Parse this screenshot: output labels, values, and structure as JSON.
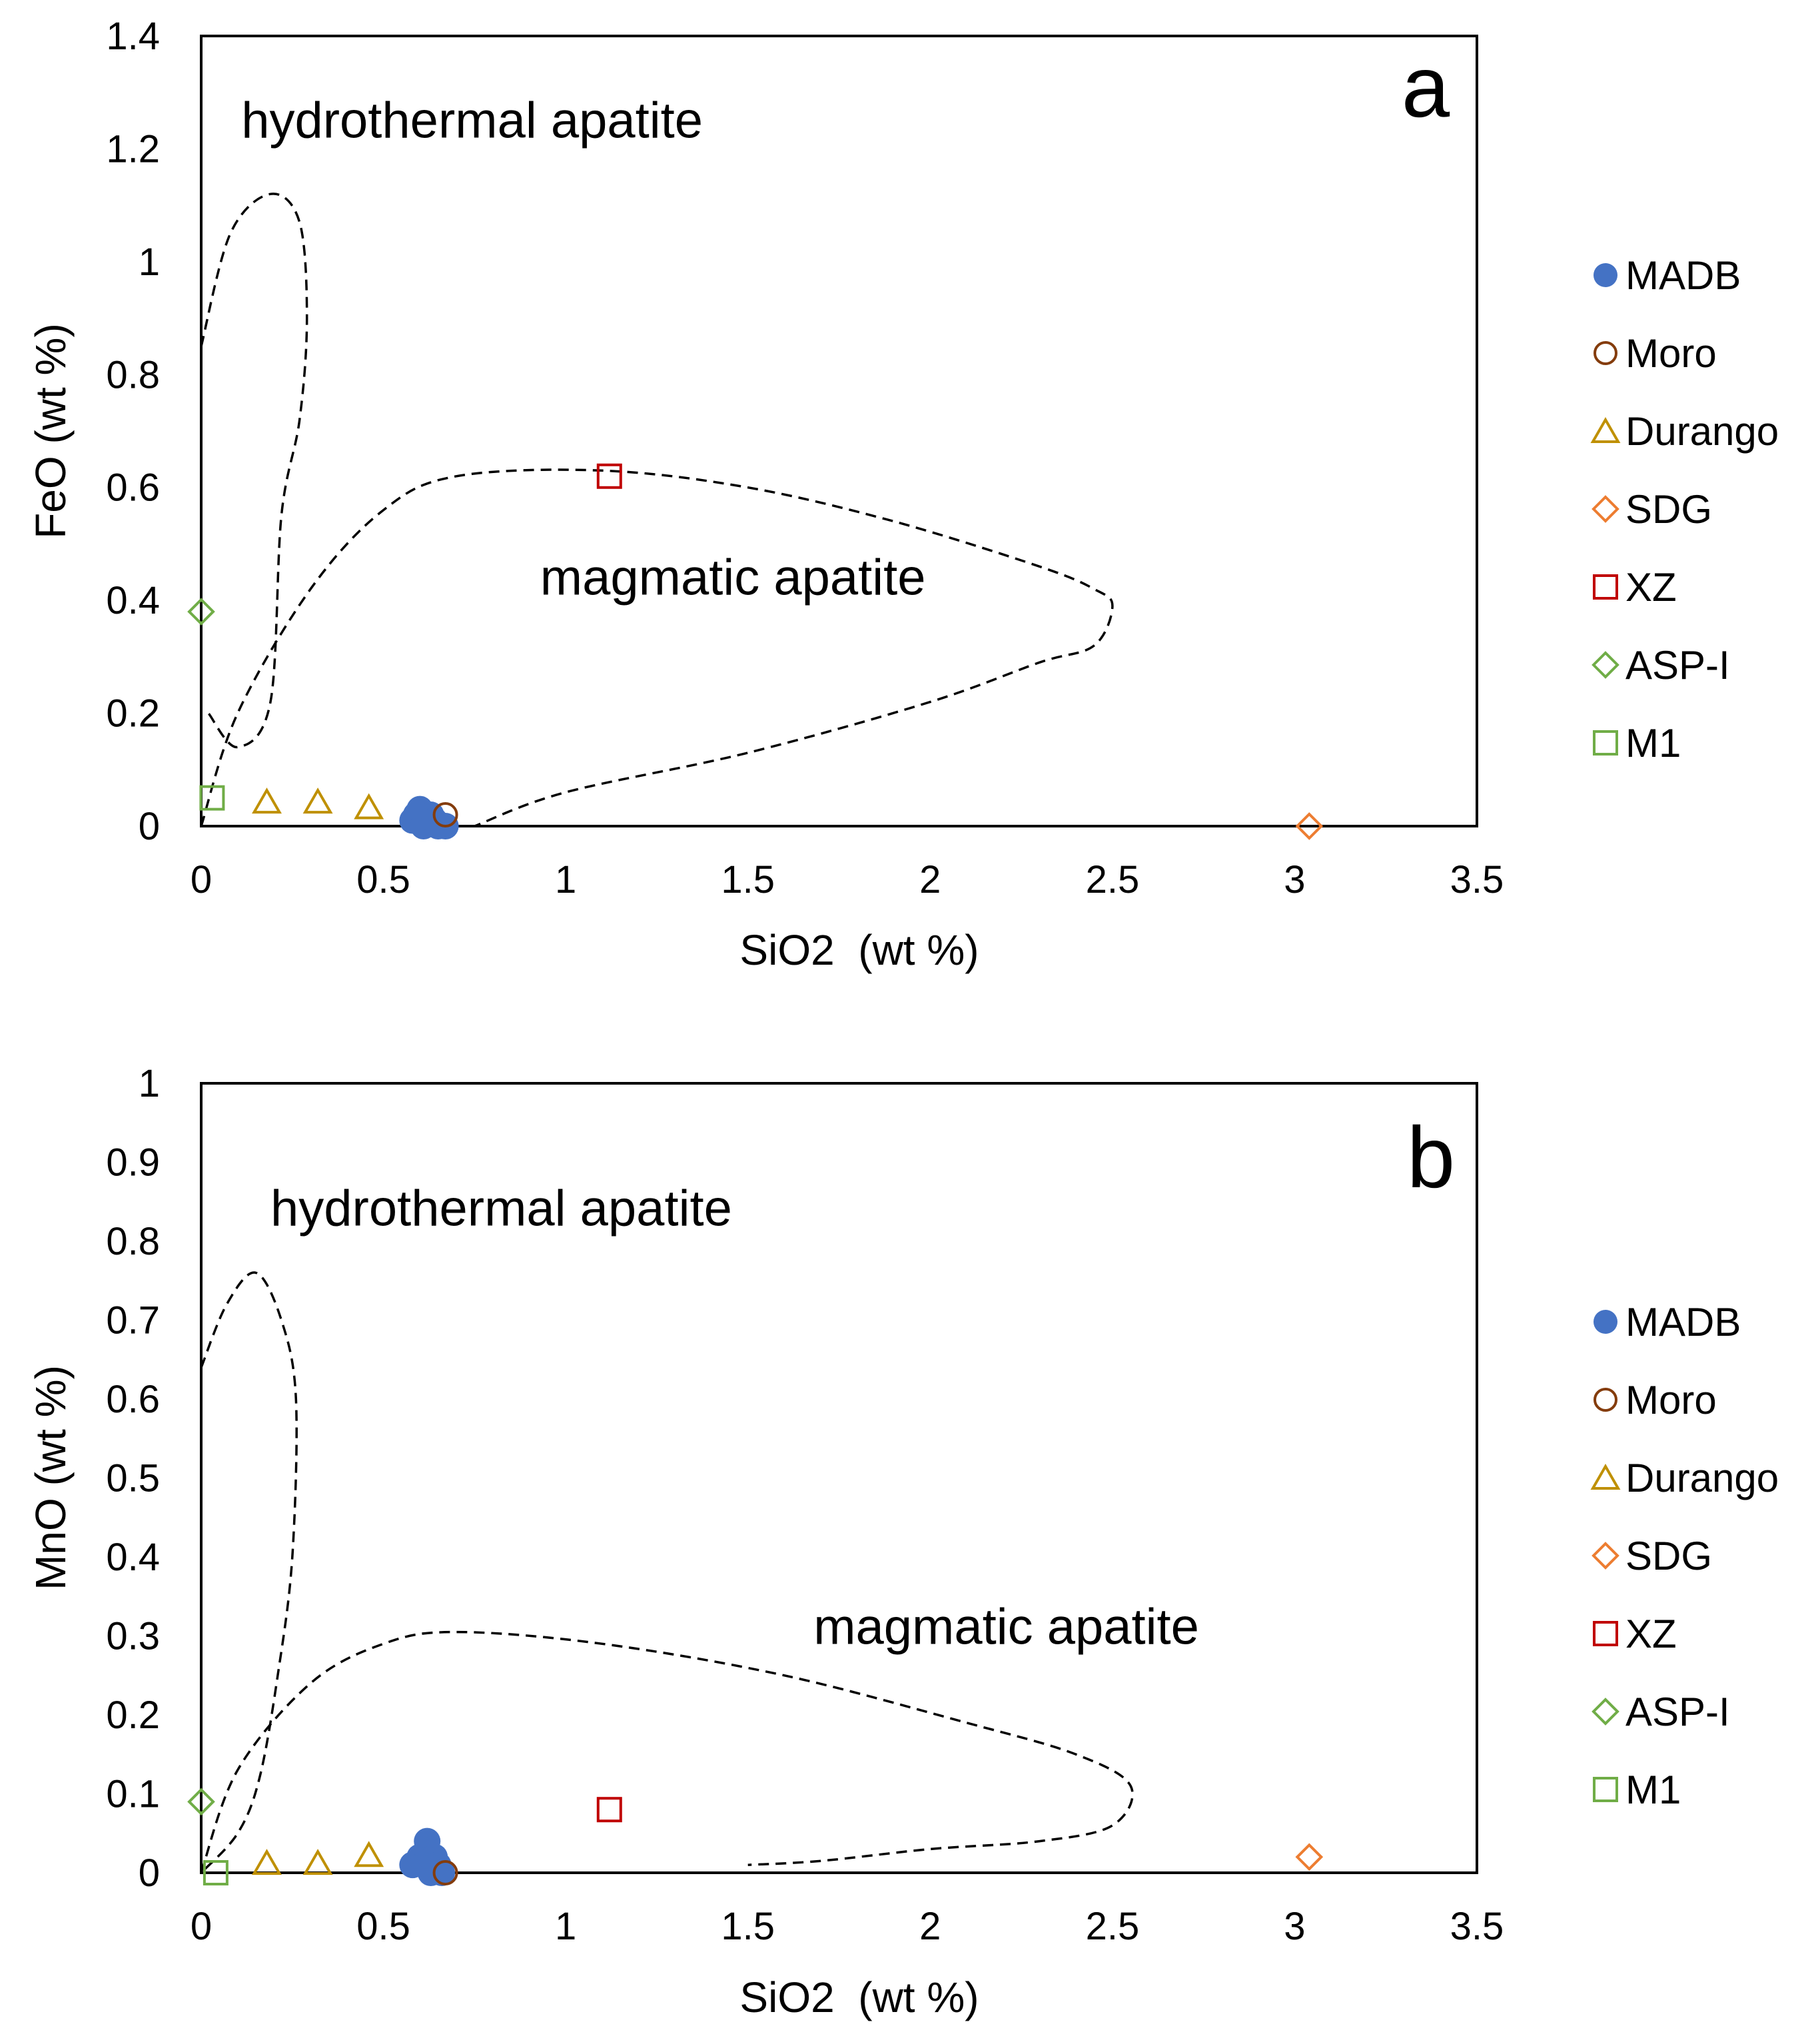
{
  "figure": {
    "colors": {
      "MADB": "#4472c4",
      "Moro": "#843c0c",
      "Durango": "#bf9000",
      "SDG": "#ed7d31",
      "XZ": "#c00000",
      "ASP-I": "#70ad47",
      "M1": "#70ad47"
    }
  },
  "chart_data": [
    {
      "type": "scatter",
      "panel_label": "a",
      "xlabel": "SiO2  (wt %)",
      "ylabel": "FeO (wt %)",
      "xlim": [
        0,
        3.5
      ],
      "ylim": [
        0,
        1.4
      ],
      "xticks": [
        "0",
        "0.5",
        "1",
        "1.5",
        "2",
        "2.5",
        "3",
        "3.5"
      ],
      "yticks": [
        "0",
        "0.2",
        "0.4",
        "0.6",
        "0.8",
        "1",
        "1.2",
        "1.4"
      ],
      "regions": [
        {
          "name": "hydrothermal apatite",
          "label_at": [
            0.11,
            1.22
          ],
          "boundary": [
            [
              0.0,
              0.85
            ],
            [
              0.08,
              1.05
            ],
            [
              0.19,
              1.12
            ],
            [
              0.27,
              1.07
            ],
            [
              0.29,
              0.9
            ],
            [
              0.27,
              0.72
            ],
            [
              0.22,
              0.55
            ],
            [
              0.19,
              0.22
            ],
            [
              0.1,
              0.14
            ],
            [
              0.02,
              0.2
            ]
          ]
        },
        {
          "name": "magmatic apatite",
          "label_at": [
            0.93,
            0.41
          ],
          "boundary": [
            [
              0.0,
              0.0
            ],
            [
              0.1,
              0.2
            ],
            [
              0.3,
              0.42
            ],
            [
              0.5,
              0.56
            ],
            [
              0.7,
              0.62
            ],
            [
              1.1,
              0.63
            ],
            [
              1.5,
              0.6
            ],
            [
              1.9,
              0.54
            ],
            [
              2.3,
              0.46
            ],
            [
              2.45,
              0.42
            ],
            [
              2.5,
              0.39
            ],
            [
              2.45,
              0.32
            ],
            [
              2.3,
              0.29
            ],
            [
              2.0,
              0.22
            ],
            [
              1.5,
              0.13
            ],
            [
              1.0,
              0.06
            ],
            [
              0.75,
              0.0
            ]
          ]
        }
      ],
      "series": [
        {
          "name": "MADB",
          "marker": "filled-circle",
          "points": [
            [
              0.58,
              0.01
            ],
            [
              0.59,
              0.02
            ],
            [
              0.6,
              0.03
            ],
            [
              0.61,
              0.0
            ],
            [
              0.62,
              0.01
            ],
            [
              0.63,
              0.02
            ],
            [
              0.64,
              0.01
            ],
            [
              0.65,
              0.0
            ],
            [
              0.67,
              0.0
            ]
          ]
        },
        {
          "name": "Moro",
          "marker": "open-circle",
          "points": [
            [
              0.67,
              0.02
            ]
          ]
        },
        {
          "name": "Durango",
          "marker": "open-triangle",
          "points": [
            [
              0.18,
              0.04
            ],
            [
              0.32,
              0.04
            ],
            [
              0.46,
              0.03
            ]
          ]
        },
        {
          "name": "SDG",
          "marker": "open-diamond",
          "points": [
            [
              3.04,
              0.0
            ]
          ]
        },
        {
          "name": "XZ",
          "marker": "open-square",
          "points": [
            [
              1.12,
              0.62
            ]
          ]
        },
        {
          "name": "ASP-I",
          "marker": "open-diamond",
          "points": [
            [
              0.0,
              0.38
            ]
          ]
        },
        {
          "name": "M1",
          "marker": "open-square",
          "points": [
            [
              0.03,
              0.05
            ]
          ]
        }
      ]
    },
    {
      "type": "scatter",
      "panel_label": "b",
      "xlabel": "SiO2  (wt %)",
      "ylabel": "MnO (wt %)",
      "xlim": [
        0,
        3.5
      ],
      "ylim": [
        0,
        1
      ],
      "xticks": [
        "0",
        "0.5",
        "1",
        "1.5",
        "2",
        "2.5",
        "3",
        "3.5"
      ],
      "yticks": [
        "0",
        "0.1",
        "0.2",
        "0.3",
        "0.4",
        "0.5",
        "0.6",
        "0.7",
        "0.8",
        "0.9",
        "1"
      ],
      "regions": [
        {
          "name": "hydrothermal apatite",
          "label_at": [
            0.19,
            0.82
          ],
          "boundary": [
            [
              0.0,
              0.64
            ],
            [
              0.07,
              0.72
            ],
            [
              0.15,
              0.76
            ],
            [
              0.22,
              0.7
            ],
            [
              0.26,
              0.6
            ],
            [
              0.25,
              0.4
            ],
            [
              0.21,
              0.25
            ],
            [
              0.16,
              0.12
            ],
            [
              0.1,
              0.05
            ],
            [
              0.0,
              0.0
            ]
          ]
        },
        {
          "name": "magmatic apatite",
          "label_at": [
            1.68,
            0.29
          ],
          "boundary": [
            [
              0.0,
              0.0
            ],
            [
              0.1,
              0.13
            ],
            [
              0.3,
              0.24
            ],
            [
              0.5,
              0.29
            ],
            [
              0.7,
              0.305
            ],
            [
              1.1,
              0.29
            ],
            [
              1.6,
              0.25
            ],
            [
              2.1,
              0.19
            ],
            [
              2.4,
              0.15
            ],
            [
              2.55,
              0.11
            ],
            [
              2.5,
              0.06
            ],
            [
              2.3,
              0.04
            ],
            [
              2.0,
              0.03
            ],
            [
              1.7,
              0.015
            ],
            [
              1.5,
              0.01
            ]
          ]
        }
      ],
      "series": [
        {
          "name": "MADB",
          "marker": "filled-circle",
          "points": [
            [
              0.58,
              0.01
            ],
            [
              0.6,
              0.02
            ],
            [
              0.62,
              0.04
            ],
            [
              0.62,
              0.03
            ],
            [
              0.64,
              0.02
            ],
            [
              0.65,
              0.01
            ],
            [
              0.66,
              0.0
            ],
            [
              0.63,
              0.0
            ],
            [
              0.61,
              0.01
            ]
          ]
        },
        {
          "name": "Moro",
          "marker": "open-circle",
          "points": [
            [
              0.67,
              0.0
            ]
          ]
        },
        {
          "name": "Durango",
          "marker": "open-triangle",
          "points": [
            [
              0.18,
              0.01
            ],
            [
              0.32,
              0.01
            ],
            [
              0.46,
              0.02
            ]
          ]
        },
        {
          "name": "SDG",
          "marker": "open-diamond",
          "points": [
            [
              3.04,
              0.02
            ]
          ]
        },
        {
          "name": "XZ",
          "marker": "open-square",
          "points": [
            [
              1.12,
              0.08
            ]
          ]
        },
        {
          "name": "ASP-I",
          "marker": "open-diamond",
          "points": [
            [
              0.0,
              0.09
            ]
          ]
        },
        {
          "name": "M1",
          "marker": "open-square",
          "points": [
            [
              0.04,
              0.0
            ]
          ]
        }
      ]
    }
  ]
}
